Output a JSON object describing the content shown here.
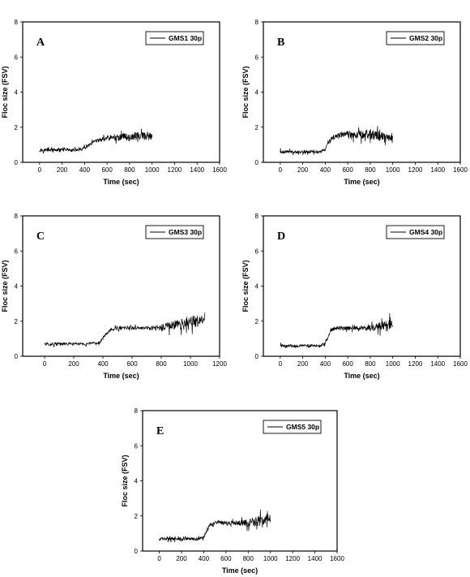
{
  "chart_data": [
    {
      "type": "line",
      "panel_label": "A",
      "xlabel": "Time (sec)",
      "ylabel": "Floc size (FSV)",
      "xlim": [
        -150,
        1600
      ],
      "ylim": [
        0,
        8
      ],
      "xticks": [
        0,
        200,
        400,
        600,
        800,
        1000,
        1200,
        1400,
        1600
      ],
      "yticks": [
        0,
        2,
        4,
        6,
        8
      ],
      "legend": "top-right",
      "series": [
        {
          "name": "GMS1 30p",
          "x": [
            0,
            50,
            100,
            150,
            200,
            250,
            300,
            350,
            400,
            450,
            500,
            550,
            600,
            650,
            700,
            750,
            800,
            850,
            900,
            950,
            1000
          ],
          "y": [
            0.7,
            0.7,
            0.7,
            0.7,
            0.7,
            0.7,
            0.7,
            0.7,
            0.8,
            1.0,
            1.2,
            1.3,
            1.4,
            1.4,
            1.4,
            1.5,
            1.4,
            1.5,
            1.5,
            1.5,
            1.4
          ],
          "noise": [
            0.15,
            0.12,
            0.12,
            0.12,
            0.12,
            0.12,
            0.12,
            0.12,
            0.12,
            0.15,
            0.15,
            0.15,
            0.2,
            0.2,
            0.25,
            0.25,
            0.3,
            0.35,
            0.35,
            0.35,
            0.3
          ]
        }
      ]
    },
    {
      "type": "line",
      "panel_label": "B",
      "xlabel": "Time (sec)",
      "ylabel": "Floc size (FSV)",
      "xlim": [
        -150,
        1600
      ],
      "ylim": [
        0,
        8
      ],
      "xticks": [
        0,
        200,
        400,
        600,
        800,
        1000,
        1200,
        1400,
        1600
      ],
      "yticks": [
        0,
        2,
        4,
        6,
        8
      ],
      "legend": "top-right",
      "series": [
        {
          "name": "GMS2 30p",
          "x": [
            0,
            50,
            100,
            150,
            200,
            250,
            300,
            350,
            400,
            420,
            450,
            500,
            550,
            600,
            650,
            700,
            750,
            800,
            850,
            900,
            950,
            1000
          ],
          "y": [
            0.6,
            0.6,
            0.6,
            0.6,
            0.6,
            0.6,
            0.6,
            0.6,
            0.7,
            1.0,
            1.3,
            1.5,
            1.6,
            1.6,
            1.6,
            1.6,
            1.6,
            1.6,
            1.5,
            1.5,
            1.4,
            1.4
          ],
          "noise": [
            0.15,
            0.12,
            0.12,
            0.12,
            0.12,
            0.12,
            0.12,
            0.12,
            0.12,
            0.15,
            0.2,
            0.2,
            0.25,
            0.25,
            0.3,
            0.35,
            0.4,
            0.45,
            0.4,
            0.35,
            0.3,
            0.25
          ]
        }
      ]
    },
    {
      "type": "line",
      "panel_label": "C",
      "xlabel": "Time (sec)",
      "ylabel": "Floc size (FSV)",
      "xlim": [
        -150,
        1200
      ],
      "ylim": [
        0,
        8
      ],
      "xticks": [
        0,
        200,
        400,
        600,
        800,
        1000,
        1200
      ],
      "yticks": [
        0,
        2,
        4,
        6,
        8
      ],
      "legend": "top-right",
      "series": [
        {
          "name": "GMS3 30p",
          "x": [
            0,
            50,
            100,
            150,
            200,
            250,
            300,
            350,
            380,
            420,
            450,
            500,
            550,
            600,
            650,
            700,
            750,
            800,
            850,
            900,
            950,
            1000,
            1050,
            1100
          ],
          "y": [
            0.7,
            0.7,
            0.7,
            0.7,
            0.7,
            0.7,
            0.7,
            0.7,
            0.8,
            1.3,
            1.5,
            1.6,
            1.6,
            1.6,
            1.6,
            1.6,
            1.6,
            1.6,
            1.7,
            1.8,
            1.8,
            1.9,
            2.0,
            2.1
          ],
          "noise": [
            0.12,
            0.12,
            0.12,
            0.12,
            0.12,
            0.12,
            0.12,
            0.12,
            0.12,
            0.15,
            0.15,
            0.15,
            0.15,
            0.15,
            0.15,
            0.15,
            0.2,
            0.3,
            0.35,
            0.4,
            0.45,
            0.5,
            0.55,
            0.6
          ]
        }
      ]
    },
    {
      "type": "line",
      "panel_label": "D",
      "xlabel": "Time (sec)",
      "ylabel": "Floc size (FSV)",
      "xlim": [
        -150,
        1600
      ],
      "ylim": [
        0,
        8
      ],
      "xticks": [
        0,
        200,
        400,
        600,
        800,
        1000,
        1200,
        1400,
        1600
      ],
      "yticks": [
        0,
        2,
        4,
        6,
        8
      ],
      "legend": "top-right",
      "series": [
        {
          "name": "GMS4 30p",
          "x": [
            0,
            50,
            100,
            150,
            200,
            250,
            300,
            350,
            400,
            430,
            450,
            500,
            550,
            600,
            650,
            700,
            750,
            800,
            850,
            900,
            950,
            1000
          ],
          "y": [
            0.6,
            0.6,
            0.6,
            0.6,
            0.6,
            0.6,
            0.6,
            0.6,
            0.7,
            1.2,
            1.5,
            1.6,
            1.6,
            1.6,
            1.6,
            1.6,
            1.6,
            1.6,
            1.7,
            1.7,
            1.8,
            1.8
          ],
          "noise": [
            0.12,
            0.12,
            0.12,
            0.12,
            0.12,
            0.12,
            0.12,
            0.12,
            0.12,
            0.15,
            0.15,
            0.15,
            0.15,
            0.15,
            0.15,
            0.15,
            0.2,
            0.25,
            0.3,
            0.35,
            0.4,
            0.45
          ]
        }
      ]
    },
    {
      "type": "line",
      "panel_label": "E",
      "xlabel": "Time (sec)",
      "ylabel": "Floc size (FSV)",
      "xlim": [
        -150,
        1600
      ],
      "ylim": [
        0,
        8
      ],
      "xticks": [
        0,
        200,
        400,
        600,
        800,
        1000,
        1200,
        1400,
        1600
      ],
      "yticks": [
        0,
        2,
        4,
        6,
        8
      ],
      "legend": "top-right",
      "series": [
        {
          "name": "GMS5 30p",
          "x": [
            0,
            50,
            100,
            150,
            200,
            250,
            300,
            350,
            400,
            430,
            450,
            500,
            550,
            600,
            650,
            700,
            750,
            800,
            850,
            900,
            950,
            1000
          ],
          "y": [
            0.7,
            0.7,
            0.7,
            0.7,
            0.7,
            0.7,
            0.7,
            0.7,
            0.8,
            1.2,
            1.5,
            1.6,
            1.6,
            1.6,
            1.6,
            1.6,
            1.6,
            1.6,
            1.7,
            1.7,
            1.8,
            1.8
          ],
          "noise": [
            0.12,
            0.12,
            0.15,
            0.12,
            0.12,
            0.12,
            0.12,
            0.12,
            0.12,
            0.15,
            0.15,
            0.15,
            0.15,
            0.15,
            0.15,
            0.2,
            0.25,
            0.3,
            0.35,
            0.4,
            0.45,
            0.5
          ]
        }
      ]
    }
  ]
}
